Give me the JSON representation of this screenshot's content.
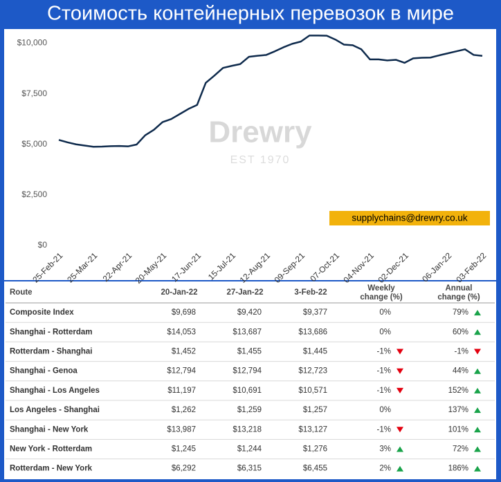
{
  "page_title": "Стоимость контейнерных перевозок в мире",
  "chart_data": {
    "type": "line",
    "categories": [
      "25-Feb-21",
      null,
      null,
      null,
      "25-Mar-21",
      null,
      null,
      null,
      "22-Apr-21",
      null,
      null,
      null,
      "20-May-21",
      null,
      null,
      null,
      "17-Jun-21",
      null,
      null,
      null,
      "15-Jul-21",
      null,
      null,
      null,
      "12-Aug-21",
      null,
      null,
      null,
      "09-Sep-21",
      null,
      null,
      null,
      "07-Oct-21",
      null,
      null,
      null,
      "04-Nov-21",
      null,
      null,
      null,
      "02-Dec-21",
      null,
      null,
      null,
      null,
      "06-Jan-22",
      null,
      null,
      null,
      "03-Feb-22"
    ],
    "values": [
      5220,
      5100,
      5000,
      4940,
      4880,
      4890,
      4910,
      4920,
      4900,
      4990,
      5450,
      5720,
      6100,
      6250,
      6500,
      6750,
      6950,
      8040,
      8400,
      8780,
      8880,
      8970,
      9330,
      9380,
      9420,
      9600,
      9800,
      9970,
      10080,
      10380,
      10380,
      10370,
      10180,
      9930,
      9900,
      9700,
      9200,
      9200,
      9150,
      9180,
      9030,
      9250,
      9280,
      9290,
      9400,
      9500,
      9600,
      9698,
      9420,
      9377
    ],
    "color": "#0e2a4c",
    "ylim": [
      0,
      10700
    ],
    "yticks": [
      {
        "value": 0,
        "label": "$0"
      },
      {
        "value": 2500,
        "label": "$2,500"
      },
      {
        "value": 5000,
        "label": "$5,000"
      },
      {
        "value": 7500,
        "label": "$7,500"
      },
      {
        "value": 10000,
        "label": "$10,000"
      }
    ],
    "grid": false,
    "annotation": "supplychains@drewry.co.uk",
    "watermark": [
      "Drewry",
      "EST 1970"
    ]
  },
  "table": {
    "header": [
      "Route",
      "20-Jan-22",
      "27-Jan-22",
      "3-Feb-22",
      "Weekly\nchange (%)",
      "Annual\nchange (%)"
    ],
    "rows": [
      [
        "Composite Index",
        "$9,698",
        "$9,420",
        "$9,377",
        "0%",
        "79%"
      ],
      [
        "Shanghai - Rotterdam",
        "$14,053",
        "$13,687",
        "$13,686",
        "0%",
        "60%"
      ],
      [
        "Rotterdam - Shanghai",
        "$1,452",
        "$1,455",
        "$1,445",
        "-1%",
        "-1%"
      ],
      [
        "Shanghai - Genoa",
        "$12,794",
        "$12,794",
        "$12,723",
        "-1%",
        "44%"
      ],
      [
        "Shanghai - Los Angeles",
        "$11,197",
        "$10,691",
        "$10,571",
        "-1%",
        "152%"
      ],
      [
        "Los Angeles - Shanghai",
        "$1,262",
        "$1,259",
        "$1,257",
        "0%",
        "137%"
      ],
      [
        "Shanghai - New York",
        "$13,987",
        "$13,218",
        "$13,127",
        "-1%",
        "101%"
      ],
      [
        "New York - Rotterdam",
        "$1,245",
        "$1,244",
        "$1,276",
        "3%",
        "72%"
      ],
      [
        "Rotterdam - New York",
        "$6,292",
        "$6,315",
        "$6,455",
        "2%",
        "186%"
      ]
    ]
  }
}
